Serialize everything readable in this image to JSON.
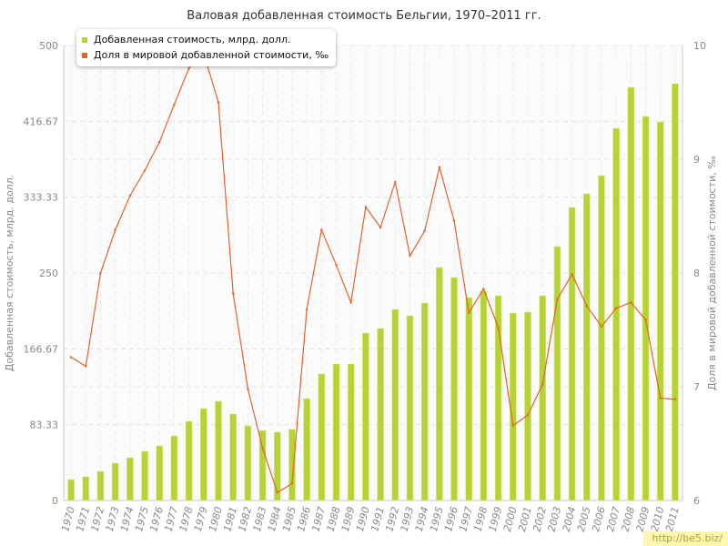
{
  "chart_data": {
    "type": "bar",
    "title": "Валовая добавленная стоимость Бельгии, 1970–2011 гг.",
    "categories": [
      "1970",
      "1971",
      "1972",
      "1973",
      "1974",
      "1975",
      "1976",
      "1977",
      "1978",
      "1979",
      "1980",
      "1981",
      "1982",
      "1983",
      "1984",
      "1985",
      "1986",
      "1987",
      "1988",
      "1989",
      "1990",
      "1991",
      "1992",
      "1993",
      "1994",
      "1995",
      "1996",
      "1997",
      "1998",
      "1999",
      "2000",
      "2001",
      "2002",
      "2003",
      "2004",
      "2005",
      "2006",
      "2007",
      "2008",
      "2009",
      "2010",
      "2011"
    ],
    "ylabel": "Добавленная стоимость, млрд. долл.",
    "y2label": "Доля в мировой добавленной стоимости, ‰",
    "ylim": [
      0,
      500
    ],
    "y2lim": [
      6,
      10
    ],
    "yticks": [
      "0",
      "83.33",
      "166.67",
      "250",
      "333.33",
      "416.67",
      "500"
    ],
    "y2ticks": [
      "6",
      "7",
      "8",
      "9",
      "10"
    ],
    "grid": true,
    "legend_position": "top-left",
    "series": [
      {
        "name": "Добавленная стоимость, млрд. долл.",
        "type": "bar",
        "axis": "left",
        "color": "#b5d334",
        "values": [
          23,
          26,
          32,
          41,
          47,
          54,
          60,
          71,
          87,
          101,
          109,
          95,
          82,
          77,
          75,
          78,
          112,
          139,
          150,
          150,
          184,
          189,
          210,
          203,
          217,
          256,
          245,
          223,
          230,
          225,
          206,
          207,
          225,
          279,
          322,
          337,
          357,
          409,
          454,
          422,
          416,
          458
        ]
      },
      {
        "name": "Доля в мировой добавленной стоимости, ‰",
        "type": "line",
        "axis": "right",
        "color": "#e0632c",
        "values": [
          7.26,
          7.18,
          8.0,
          8.38,
          8.68,
          8.9,
          9.15,
          9.48,
          9.8,
          9.93,
          9.5,
          7.82,
          6.98,
          6.46,
          6.07,
          6.15,
          7.68,
          8.38,
          8.07,
          7.74,
          8.58,
          8.4,
          8.8,
          8.15,
          8.37,
          8.93,
          8.46,
          7.65,
          7.86,
          7.52,
          6.66,
          6.75,
          7.02,
          7.77,
          7.99,
          7.71,
          7.53,
          7.69,
          7.74,
          7.59,
          6.9,
          6.89
        ]
      }
    ]
  },
  "watermark": "http://be5.biz/"
}
